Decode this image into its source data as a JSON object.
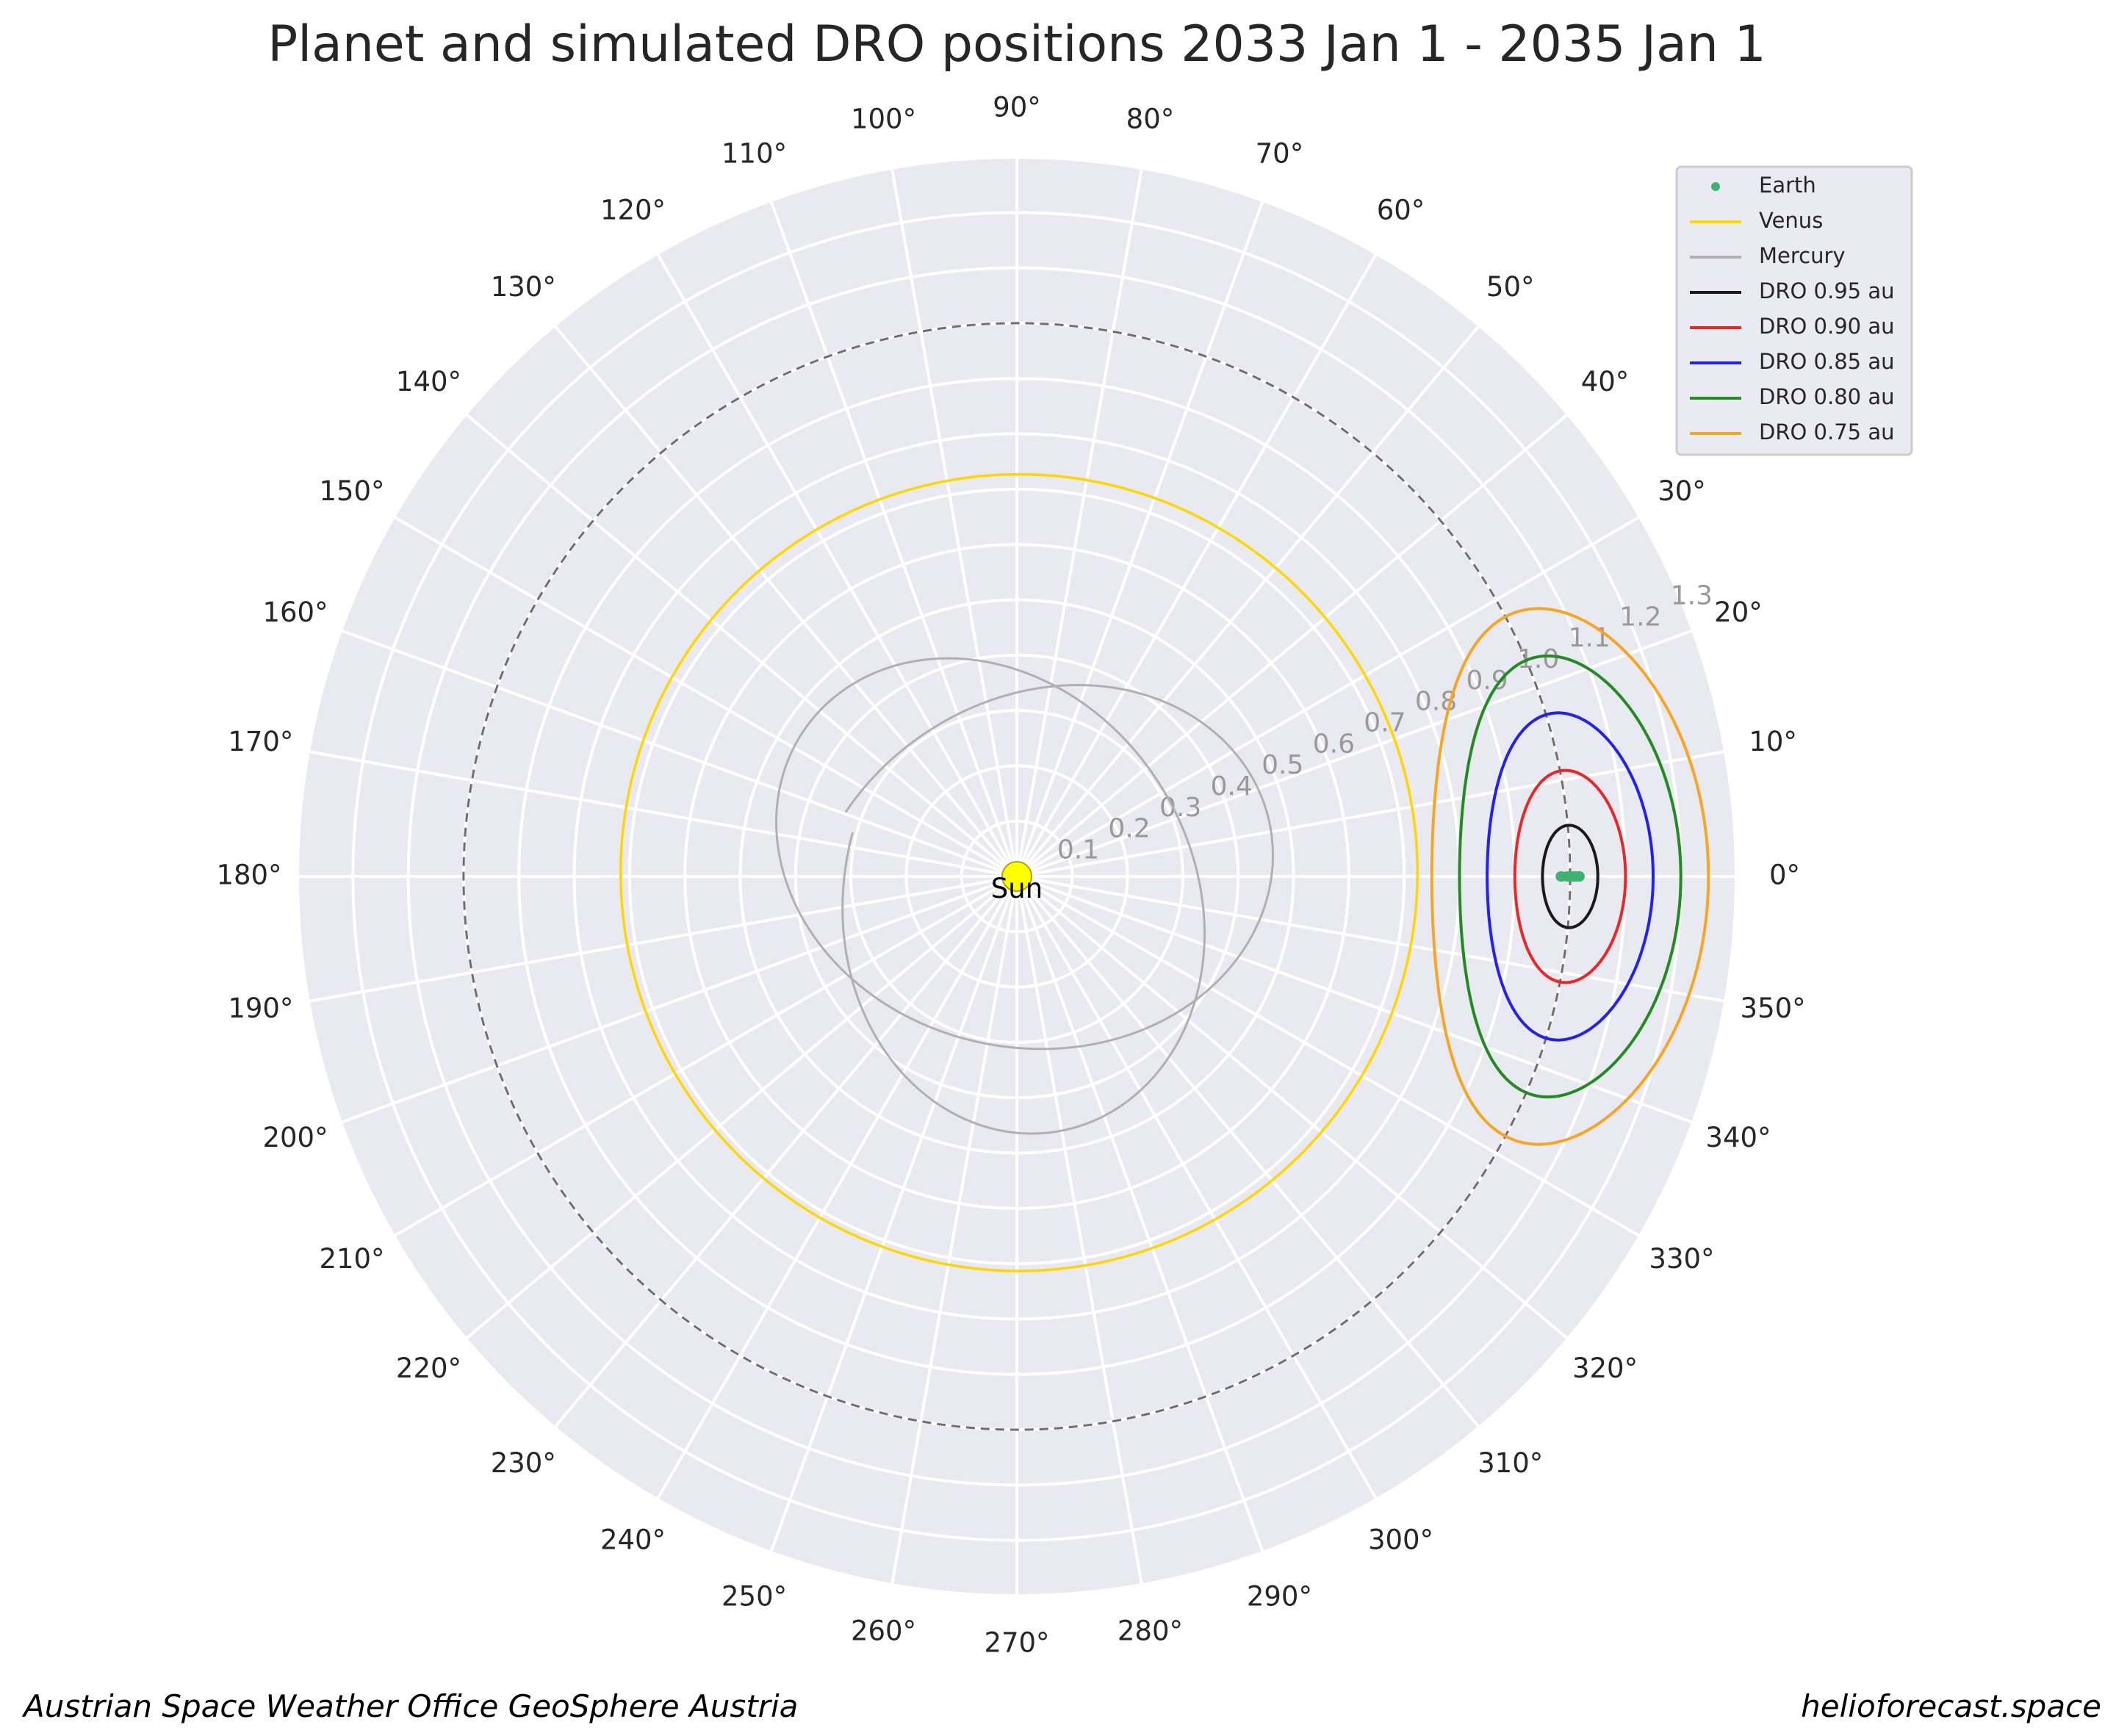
{
  "chart_data": {
    "type": "polar",
    "title": "Planet and simulated DRO positions 2033 Jan 1 - 2035 Jan 1",
    "center_label": "Sun",
    "theta_ticks_deg": [
      0,
      10,
      20,
      30,
      40,
      50,
      60,
      70,
      80,
      90,
      100,
      110,
      120,
      130,
      140,
      150,
      160,
      170,
      180,
      190,
      200,
      210,
      220,
      230,
      240,
      250,
      260,
      270,
      280,
      290,
      300,
      310,
      320,
      330,
      340,
      350
    ],
    "theta_tick_labels": [
      "0°",
      "10°",
      "20°",
      "30°",
      "40°",
      "50°",
      "60°",
      "70°",
      "80°",
      "90°",
      "100°",
      "110°",
      "120°",
      "130°",
      "140°",
      "150°",
      "160°",
      "170°",
      "180°",
      "190°",
      "200°",
      "210°",
      "220°",
      "230°",
      "240°",
      "250°",
      "260°",
      "270°",
      "280°",
      "290°",
      "300°",
      "310°",
      "320°",
      "330°",
      "340°",
      "350°"
    ],
    "r_ticks": [
      "0.1",
      "0.2",
      "0.3",
      "0.4",
      "0.5",
      "0.6",
      "0.7",
      "0.8",
      "0.9",
      "1.0",
      "1.1",
      "1.2",
      "1.3"
    ],
    "rlim": [
      0,
      1.3
    ],
    "reference_circle_au": 1.0,
    "grid": true,
    "legend_position": "top-right",
    "series": [
      {
        "name": "Earth",
        "marker": "dot",
        "color": "#3cb371",
        "r": [
          0.995,
          1.0,
          1.005,
          1.01,
          1.015,
          1.017,
          1.005,
          0.995,
          0.985,
          0.983
        ],
        "theta_deg": [
          0,
          0,
          0,
          0,
          0,
          0,
          0,
          0,
          0,
          0
        ]
      },
      {
        "name": "Venus",
        "color": "#ffd700",
        "r_au": 0.72,
        "theta_range_deg": [
          -40,
          400
        ]
      },
      {
        "name": "Mercury",
        "color": "#b0b0b0",
        "semi_major_au": 0.387,
        "eccentricity": 0.206,
        "orbits": 3
      },
      {
        "name": "DRO 0.95 au",
        "color": "#1a1a1a",
        "center_r": 1.0,
        "radial_half_width": 0.05,
        "half_angle_deg": 5.3
      },
      {
        "name": "DRO 0.90 au",
        "color": "#e82727",
        "center_r": 1.0,
        "radial_half_width": 0.1,
        "half_angle_deg": 11.0
      },
      {
        "name": "DRO 0.85 au",
        "color": "#2222ee",
        "center_r": 1.0,
        "radial_half_width": 0.15,
        "half_angle_deg": 17.0
      },
      {
        "name": "DRO 0.80 au",
        "color": "#228b22",
        "center_r": 1.0,
        "radial_half_width": 0.2,
        "half_angle_deg": 23.0
      },
      {
        "name": "DRO 0.75 au",
        "color": "#f5a623",
        "center_r": 1.0,
        "radial_half_width": 0.25,
        "half_angle_deg": 28.0
      }
    ]
  },
  "footer": {
    "left": "Austrian Space Weather Office   GeoSphere Austria",
    "right": "helioforecast.space"
  }
}
